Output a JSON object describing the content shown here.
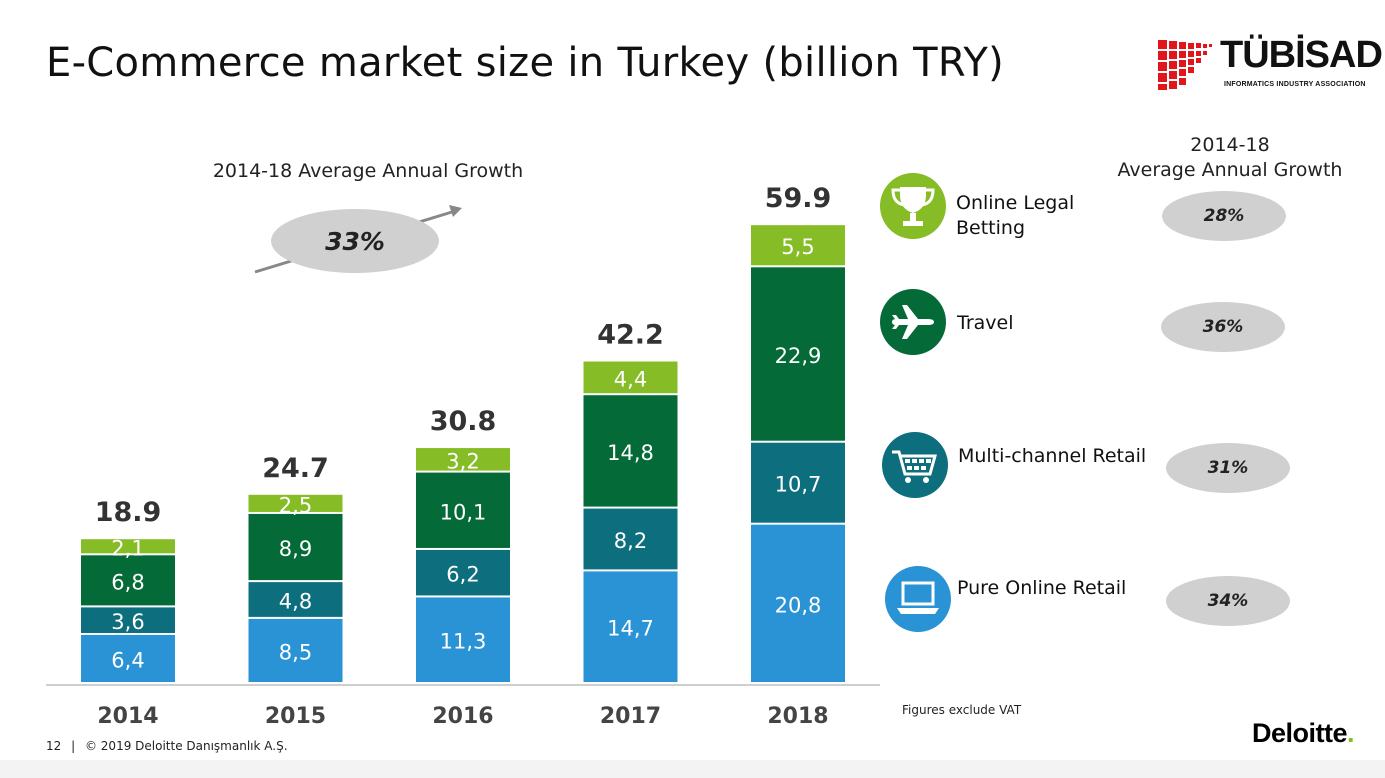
{
  "slide": {
    "title": "E-Commerce market size in Turkey (billion TRY)",
    "logo_name": "TÜBİSAD",
    "logo_subtitle": "INFORMATICS INDUSTRY ASSOCIATION",
    "note": "Figures exclude VAT",
    "page_number": "12",
    "footer_separator": "|",
    "copyright": "© 2019 Deloitte Danışmanlık A.Ş.",
    "brand": "Deloitte",
    "brand_dot": "."
  },
  "growth": {
    "title": "2014-18 Average Annual Growth",
    "overall_value": "33%",
    "right_title_line1": "2014-18",
    "right_title_line2": "Average Annual Growth"
  },
  "categories": [
    {
      "label_line1": "Online Legal",
      "label_line2": "Betting",
      "growth": "28%",
      "icon": "trophy-icon",
      "color": "#86bc25"
    },
    {
      "label_line1": "Travel",
      "label_line2": "",
      "growth": "36%",
      "icon": "airplane-icon",
      "color": "#046a38"
    },
    {
      "label_line1": "Multi-channel Retail",
      "label_line2": "",
      "growth": "31%",
      "icon": "shopping-cart-icon",
      "color": "#0d6e7d"
    },
    {
      "label_line1": "Pure Online Retail",
      "label_line2": "",
      "growth": "34%",
      "icon": "laptop-icon",
      "color": "#2a93d5"
    }
  ],
  "chart_data": {
    "type": "bar",
    "stacked": true,
    "categories": [
      "2014",
      "2015",
      "2016",
      "2017",
      "2018"
    ],
    "series": [
      {
        "name": "Pure Online Retail",
        "color": "#2a93d5",
        "values": [
          6.4,
          8.5,
          11.3,
          14.7,
          20.8
        ],
        "labels": [
          "6,4",
          "8,5",
          "11,3",
          "14,7",
          "20,8"
        ]
      },
      {
        "name": "Multi-channel Retail",
        "color": "#0d6e7d",
        "values": [
          3.6,
          4.8,
          6.2,
          8.2,
          10.7
        ],
        "labels": [
          "3,6",
          "4,8",
          "6,2",
          "8,2",
          "10,7"
        ]
      },
      {
        "name": "Travel",
        "color": "#046a38",
        "values": [
          6.8,
          8.9,
          10.1,
          14.8,
          22.9
        ],
        "labels": [
          "6,8",
          "8,9",
          "10,1",
          "14,8",
          "22,9"
        ]
      },
      {
        "name": "Online Legal Betting",
        "color": "#86bc25",
        "values": [
          2.1,
          2.5,
          3.2,
          4.4,
          5.5
        ],
        "labels": [
          "2,1",
          "2,5",
          "3,2",
          "4,4",
          "5,5"
        ]
      }
    ],
    "totals": [
      18.9,
      24.7,
      30.8,
      42.2,
      59.9
    ],
    "total_labels": [
      "18.9",
      "24.7",
      "30.8",
      "42.2",
      "59.9"
    ],
    "ylim": [
      0,
      60
    ],
    "grid": false
  }
}
